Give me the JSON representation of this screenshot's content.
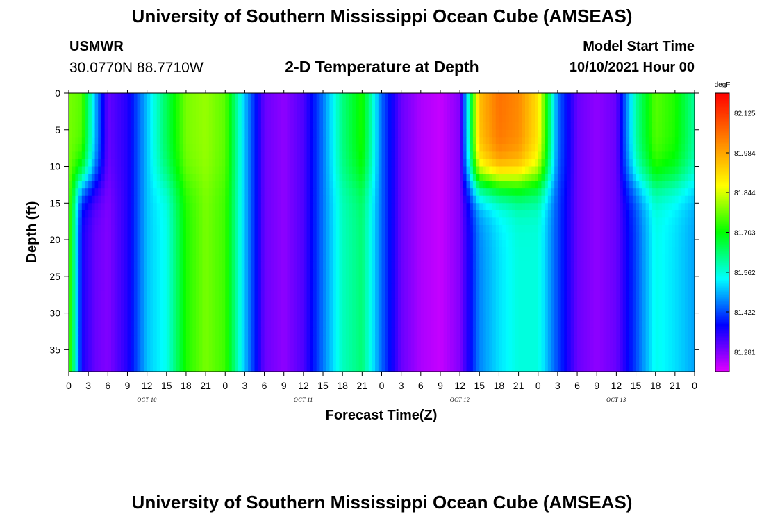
{
  "header": {
    "title": "University of Southern Mississippi Ocean Cube (AMSEAS)",
    "station_name": "USMWR",
    "station_coords": "30.0770N  88.7710W",
    "plot_title": "2-D Temperature at Depth",
    "model_start_label": "Model Start Time",
    "model_start_value": "10/10/2021 Hour 00"
  },
  "footer": {
    "title": "University of Southern Mississippi Ocean Cube (AMSEAS)"
  },
  "chart_data": {
    "type": "heatmap",
    "xlabel": "Forecast Time(Z)",
    "ylabel": "Depth (ft)",
    "x_tick_labels": [
      "0",
      "3",
      "6",
      "9",
      "12",
      "15",
      "18",
      "21",
      "0",
      "3",
      "6",
      "9",
      "12",
      "15",
      "18",
      "21",
      "0",
      "3",
      "6",
      "9",
      "12",
      "15",
      "18",
      "21",
      "0",
      "3",
      "6",
      "9",
      "12",
      "15",
      "18",
      "21",
      "0"
    ],
    "date_labels": [
      "OCT 10",
      "OCT 11",
      "OCT 12",
      "OCT 13"
    ],
    "xlim_hours": [
      0,
      96
    ],
    "y_ticks": [
      0,
      5,
      10,
      15,
      20,
      25,
      30,
      35
    ],
    "ylim": [
      0,
      38
    ],
    "y_inverted": true,
    "colorbar": {
      "unit": "degF",
      "tick_labels": [
        "82.125",
        "81.984",
        "81.844",
        "81.703",
        "81.562",
        "81.422",
        "81.281"
      ],
      "tick_values": [
        82.125,
        81.984,
        81.844,
        81.703,
        81.562,
        81.422,
        81.281
      ],
      "range": [
        81.211,
        82.195
      ],
      "colors": [
        "#e000ff",
        "#0000ff",
        "#00ffff",
        "#00ff00",
        "#ffff00",
        "#ff8000",
        "#ff0000"
      ]
    },
    "temperature_profile_estimates": [
      {
        "hour": 0,
        "surface": 81.78,
        "deep": 81.78
      },
      {
        "hour": 2,
        "surface": 81.76,
        "deep": 81.36
      },
      {
        "hour": 4,
        "surface": 81.5,
        "deep": 81.3
      },
      {
        "hour": 6,
        "surface": 81.3,
        "deep": 81.28
      },
      {
        "hour": 9,
        "surface": 81.35,
        "deep": 81.35
      },
      {
        "hour": 12,
        "surface": 81.5,
        "deep": 81.5
      },
      {
        "hour": 15,
        "surface": 81.65,
        "deep": 81.55
      },
      {
        "hour": 18,
        "surface": 81.78,
        "deep": 81.72
      },
      {
        "hour": 21,
        "surface": 81.8,
        "deep": 81.78
      },
      {
        "hour": 24,
        "surface": 81.76,
        "deep": 81.74
      },
      {
        "hour": 27,
        "surface": 81.5,
        "deep": 81.5
      },
      {
        "hour": 30,
        "surface": 81.3,
        "deep": 81.3
      },
      {
        "hour": 33,
        "surface": 81.27,
        "deep": 81.27
      },
      {
        "hour": 36,
        "surface": 81.32,
        "deep": 81.32
      },
      {
        "hour": 39,
        "surface": 81.45,
        "deep": 81.45
      },
      {
        "hour": 42,
        "surface": 81.62,
        "deep": 81.58
      },
      {
        "hour": 45,
        "surface": 81.72,
        "deep": 81.63
      },
      {
        "hour": 48,
        "surface": 81.44,
        "deep": 81.44
      },
      {
        "hour": 51,
        "surface": 81.3,
        "deep": 81.3
      },
      {
        "hour": 54,
        "surface": 81.25,
        "deep": 81.25
      },
      {
        "hour": 57,
        "surface": 81.23,
        "deep": 81.23
      },
      {
        "hour": 60,
        "surface": 81.28,
        "deep": 81.28
      },
      {
        "hour": 63,
        "surface": 81.95,
        "deep": 81.46
      },
      {
        "hour": 66,
        "surface": 82.05,
        "deep": 81.52
      },
      {
        "hour": 69,
        "surface": 82.02,
        "deep": 81.56
      },
      {
        "hour": 72,
        "surface": 81.9,
        "deep": 81.56
      },
      {
        "hour": 75,
        "surface": 81.45,
        "deep": 81.42
      },
      {
        "hour": 78,
        "surface": 81.3,
        "deep": 81.3
      },
      {
        "hour": 81,
        "surface": 81.27,
        "deep": 81.27
      },
      {
        "hour": 84,
        "surface": 81.3,
        "deep": 81.3
      },
      {
        "hour": 87,
        "surface": 81.6,
        "deep": 81.42
      },
      {
        "hour": 90,
        "surface": 81.76,
        "deep": 81.55
      },
      {
        "hour": 93,
        "surface": 81.72,
        "deep": 81.52
      },
      {
        "hour": 96,
        "surface": 81.6,
        "deep": 81.48
      }
    ]
  }
}
